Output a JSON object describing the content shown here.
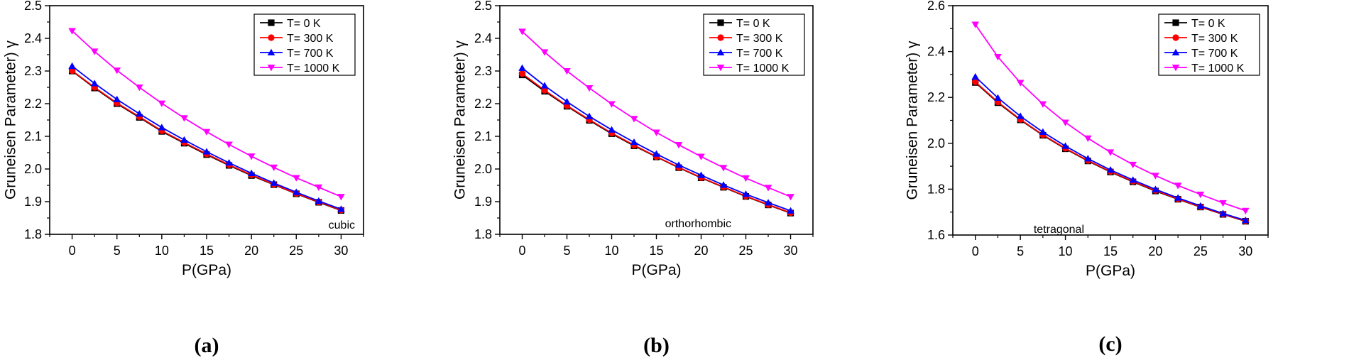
{
  "chart_data": [
    {
      "type": "line",
      "caption": "(a)",
      "annotation": "cubic",
      "xlabel": "P(GPa)",
      "ylabel": "Gruneisen Parameter) γ",
      "xlim": [
        -2.5,
        32.5
      ],
      "ylim": [
        1.8,
        2.5
      ],
      "xticks": [
        0,
        5,
        10,
        15,
        20,
        25,
        30
      ],
      "yticks": [
        1.8,
        1.9,
        2.0,
        2.1,
        2.2,
        2.3,
        2.4,
        2.5
      ],
      "ytick_labels": [
        "1.8",
        "1.9",
        "2.0",
        "2.1",
        "2.2",
        "2.3",
        "2.4",
        "2.5"
      ],
      "x": [
        0,
        2.5,
        5,
        7.5,
        10,
        12.5,
        15,
        17.5,
        20,
        22.5,
        25,
        27.5,
        30
      ],
      "series": [
        {
          "name": "T= 0 K",
          "color": "#000000",
          "marker": "square",
          "values": [
            2.3,
            2.248,
            2.2,
            2.158,
            2.115,
            2.079,
            2.044,
            2.011,
            1.98,
            1.952,
            1.924,
            1.898,
            1.873
          ]
        },
        {
          "name": "T= 300 K",
          "color": "#ff0000",
          "marker": "circle",
          "values": [
            2.301,
            2.25,
            2.202,
            2.16,
            2.117,
            2.081,
            2.046,
            2.013,
            1.982,
            1.953,
            1.925,
            1.899,
            1.874
          ]
        },
        {
          "name": "T= 700 K",
          "color": "#0000ff",
          "marker": "triangle-up",
          "values": [
            2.315,
            2.262,
            2.213,
            2.169,
            2.127,
            2.089,
            2.053,
            2.019,
            1.987,
            1.957,
            1.929,
            1.902,
            1.877
          ]
        },
        {
          "name": "T= 1000 K",
          "color": "#ff00ff",
          "marker": "triangle-down",
          "values": [
            2.423,
            2.36,
            2.302,
            2.25,
            2.201,
            2.156,
            2.114,
            2.075,
            2.039,
            2.005,
            1.973,
            1.944,
            1.915
          ]
        }
      ]
    },
    {
      "type": "line",
      "caption": "(b)",
      "annotation": "orthorhombic",
      "xlabel": "P(GPa)",
      "ylabel": "Gruneisen Parameter) γ",
      "xlim": [
        -2.5,
        32.5
      ],
      "ylim": [
        1.8,
        2.5
      ],
      "xticks": [
        0,
        5,
        10,
        15,
        20,
        25,
        30
      ],
      "yticks": [
        1.8,
        1.9,
        2.0,
        2.1,
        2.2,
        2.3,
        2.4,
        2.5
      ],
      "ytick_labels": [
        "1.8",
        "1.9",
        "2.0",
        "2.1",
        "2.2",
        "2.3",
        "2.4",
        "2.5"
      ],
      "x": [
        0,
        2.5,
        5,
        7.5,
        10,
        12.5,
        15,
        17.5,
        20,
        22.5,
        25,
        27.5,
        30
      ],
      "series": [
        {
          "name": "T= 0 K",
          "color": "#000000",
          "marker": "square",
          "values": [
            2.288,
            2.238,
            2.192,
            2.149,
            2.108,
            2.071,
            2.037,
            2.004,
            1.973,
            1.944,
            1.916,
            1.89,
            1.865
          ]
        },
        {
          "name": "T= 300 K",
          "color": "#ff0000",
          "marker": "circle",
          "values": [
            2.292,
            2.241,
            2.194,
            2.151,
            2.11,
            2.073,
            2.038,
            2.005,
            1.974,
            1.945,
            1.917,
            1.891,
            1.866
          ]
        },
        {
          "name": "T= 700 K",
          "color": "#0000ff",
          "marker": "triangle-up",
          "values": [
            2.309,
            2.255,
            2.206,
            2.161,
            2.12,
            2.082,
            2.046,
            2.012,
            1.981,
            1.951,
            1.923,
            1.897,
            1.872
          ]
        },
        {
          "name": "T= 1000 K",
          "color": "#ff00ff",
          "marker": "triangle-down",
          "values": [
            2.421,
            2.358,
            2.3,
            2.248,
            2.199,
            2.154,
            2.112,
            2.074,
            2.038,
            2.004,
            1.972,
            1.943,
            1.915
          ]
        }
      ]
    },
    {
      "type": "line",
      "caption": "(c)",
      "annotation": "tetragonal",
      "xlabel": "P(GPa)",
      "ylabel": "Gruneisen Parameter) γ",
      "xlim": [
        -2.5,
        32.5
      ],
      "ylim": [
        1.6,
        2.6
      ],
      "xticks": [
        0,
        5,
        10,
        15,
        20,
        25,
        30
      ],
      "yticks": [
        1.6,
        1.8,
        2.0,
        2.2,
        2.4,
        2.6
      ],
      "ytick_labels": [
        "1.6",
        "1.8",
        "2.0",
        "2.2",
        "2.4",
        "2.6"
      ],
      "x": [
        0,
        2.5,
        5,
        7.5,
        10,
        12.5,
        15,
        17.5,
        20,
        22.5,
        25,
        27.5,
        30
      ],
      "series": [
        {
          "name": "T= 0 K",
          "color": "#000000",
          "marker": "square",
          "values": [
            2.265,
            2.177,
            2.102,
            2.035,
            1.976,
            1.923,
            1.875,
            1.832,
            1.792,
            1.756,
            1.722,
            1.69,
            1.66
          ]
        },
        {
          "name": "T= 300 K",
          "color": "#ff0000",
          "marker": "circle",
          "values": [
            2.268,
            2.18,
            2.104,
            2.037,
            1.978,
            1.925,
            1.877,
            1.834,
            1.794,
            1.757,
            1.723,
            1.691,
            1.661
          ]
        },
        {
          "name": "T= 700 K",
          "color": "#0000ff",
          "marker": "triangle-up",
          "values": [
            2.29,
            2.198,
            2.118,
            2.049,
            1.988,
            1.933,
            1.884,
            1.84,
            1.799,
            1.762,
            1.727,
            1.694,
            1.664
          ]
        },
        {
          "name": "T= 1000 K",
          "color": "#ff00ff",
          "marker": "triangle-down",
          "values": [
            2.518,
            2.377,
            2.264,
            2.171,
            2.091,
            2.022,
            1.961,
            1.907,
            1.859,
            1.816,
            1.777,
            1.74,
            1.706
          ]
        }
      ]
    }
  ]
}
